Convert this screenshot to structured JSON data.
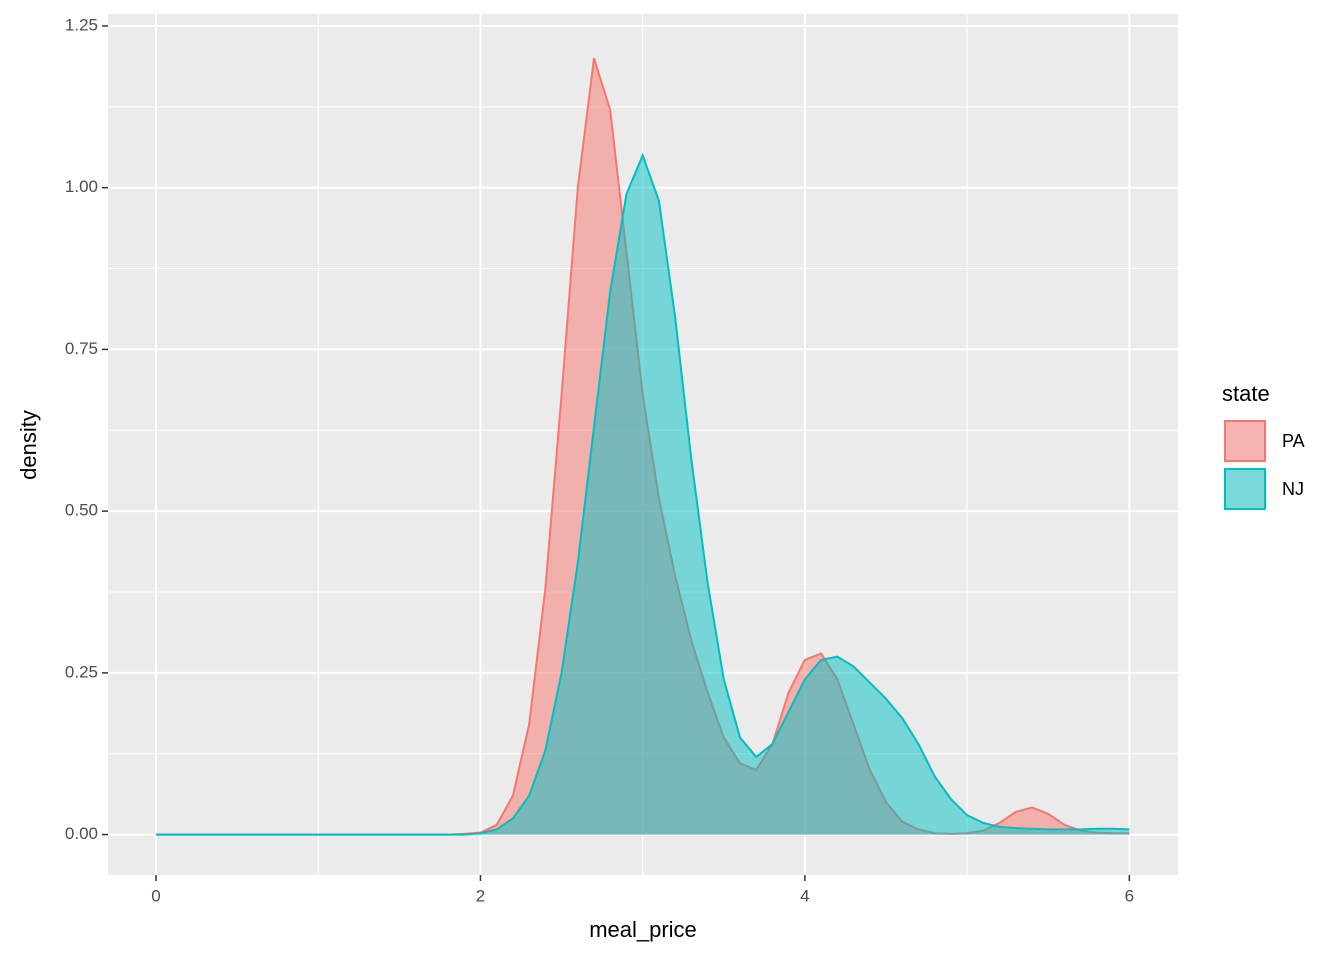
{
  "chart_data": {
    "type": "area",
    "x_label": "meal_price",
    "y_label": "density",
    "legend_title": "state",
    "legend_position": "right",
    "grid": true,
    "xlim": [
      -0.296,
      6.3
    ],
    "ylim": [
      -0.0625,
      1.2685
    ],
    "xticks": [
      0,
      2,
      4,
      6
    ],
    "yticks": [
      {
        "value": 0,
        "label": "0.00"
      },
      {
        "value": 0.25,
        "label": "0.25"
      },
      {
        "value": 0.5,
        "label": "0.50"
      },
      {
        "value": 0.75,
        "label": "0.75"
      },
      {
        "value": 1,
        "label": "1.00"
      },
      {
        "value": 1.25,
        "label": "1.25"
      }
    ],
    "x": [
      0,
      0.1,
      0.2,
      0.3,
      0.4,
      0.5,
      0.6,
      0.7,
      0.8,
      0.9,
      1,
      1.1,
      1.2,
      1.3,
      1.4,
      1.5,
      1.6,
      1.7,
      1.8,
      1.9,
      2,
      2.1,
      2.2,
      2.3,
      2.4,
      2.5,
      2.6,
      2.7,
      2.8,
      2.9,
      3,
      3.1,
      3.2,
      3.3,
      3.4,
      3.5,
      3.6,
      3.7,
      3.8,
      3.9,
      4,
      4.1,
      4.2,
      4.3,
      4.4,
      4.5,
      4.6,
      4.7,
      4.8,
      4.9,
      5,
      5.1,
      5.2,
      5.3,
      5.4,
      5.5,
      5.6,
      5.7,
      5.8,
      5.9,
      6
    ],
    "series": [
      {
        "name": "PA",
        "color": "#f8766d",
        "values": [
          0,
          0,
          0,
          0,
          0,
          0,
          0,
          0,
          0,
          0,
          0,
          0,
          0,
          0,
          0,
          0,
          0,
          0,
          0,
          0.001,
          0.003,
          0.015,
          0.06,
          0.17,
          0.38,
          0.68,
          1.0,
          1.2,
          1.12,
          0.9,
          0.68,
          0.52,
          0.4,
          0.3,
          0.22,
          0.15,
          0.11,
          0.1,
          0.14,
          0.22,
          0.27,
          0.28,
          0.24,
          0.17,
          0.1,
          0.05,
          0.02,
          0.008,
          0.002,
          0.001,
          0.002,
          0.006,
          0.018,
          0.035,
          0.042,
          0.032,
          0.015,
          0.006,
          0.003,
          0.002,
          0.002
        ]
      },
      {
        "name": "NJ",
        "color": "#00bfc4",
        "values": [
          0,
          0,
          0,
          0,
          0,
          0,
          0,
          0,
          0,
          0,
          0,
          0,
          0,
          0,
          0,
          0,
          0,
          0,
          0,
          0,
          0.002,
          0.008,
          0.025,
          0.06,
          0.13,
          0.25,
          0.42,
          0.63,
          0.84,
          0.99,
          1.05,
          0.98,
          0.8,
          0.58,
          0.39,
          0.24,
          0.15,
          0.12,
          0.14,
          0.19,
          0.24,
          0.27,
          0.275,
          0.26,
          0.235,
          0.21,
          0.18,
          0.14,
          0.09,
          0.055,
          0.03,
          0.018,
          0.012,
          0.01,
          0.009,
          0.008,
          0.008,
          0.008,
          0.009,
          0.009,
          0.008
        ]
      }
    ]
  }
}
